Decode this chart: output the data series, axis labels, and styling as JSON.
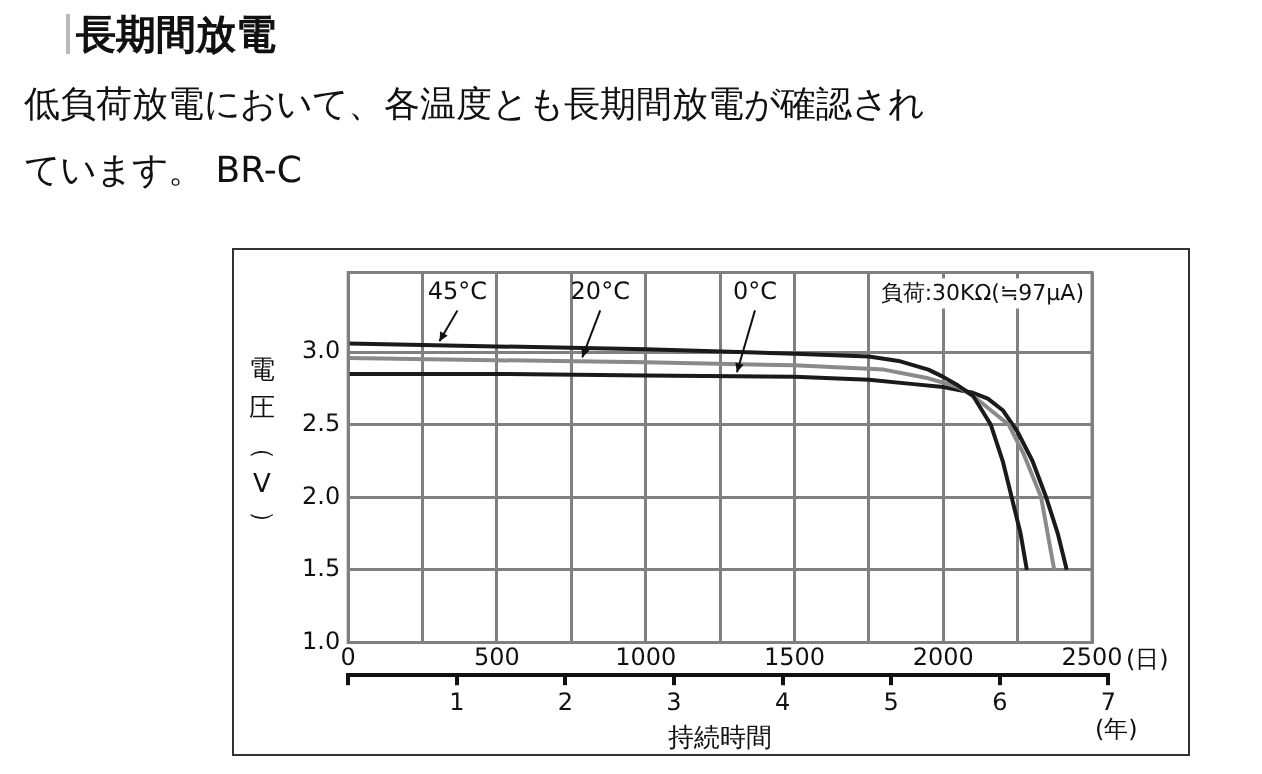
{
  "chart_data": {
    "type": "line",
    "title": "長期間放電",
    "subtitle": "低負荷放電において、各温度とも長期間放電が確認されています。 BR-C",
    "xlabel": "(日)",
    "ylabel": "電圧（V）",
    "x2label": "持続時間",
    "annotations": [
      "負荷:30KΩ(≒97μA)",
      "(年)"
    ],
    "series": [
      {
        "name": "45°C",
        "color": "#1a1a1a",
        "x": [
          0,
          500,
          1000,
          1500,
          1750,
          1850,
          1950,
          2000,
          2050,
          2100,
          2160,
          2200,
          2230,
          2260,
          2281
        ],
        "values": [
          3.06,
          3.04,
          3.02,
          2.99,
          2.97,
          2.94,
          2.88,
          2.83,
          2.77,
          2.7,
          2.5,
          2.25,
          2.0,
          1.75,
          1.5
        ]
      },
      {
        "name": "20°C",
        "color": "#8a8a8a",
        "x": [
          0,
          1000,
          1500,
          1800,
          1950,
          2050,
          2100,
          2220,
          2270,
          2329,
          2373
        ],
        "values": [
          2.96,
          2.93,
          2.91,
          2.88,
          2.82,
          2.76,
          2.7,
          2.5,
          2.3,
          2.0,
          1.5
        ]
      },
      {
        "name": "0°C",
        "color": "#1a1a1a",
        "x": [
          0,
          500,
          1000,
          1500,
          1750,
          1900,
          2000,
          2100,
          2150,
          2200,
          2250,
          2300,
          2346,
          2385,
          2415
        ],
        "values": [
          2.85,
          2.85,
          2.84,
          2.83,
          2.81,
          2.78,
          2.76,
          2.72,
          2.68,
          2.6,
          2.45,
          2.25,
          2.0,
          1.75,
          1.5
        ]
      }
    ],
    "xlim": [
      0,
      2500
    ],
    "xticks": [
      0,
      {
        "value": 250,
        "label": null
      },
      500,
      {
        "value": 750,
        "label": null
      },
      1000,
      {
        "value": 1250,
        "label": null
      },
      1500,
      {
        "value": 1750,
        "label": null
      },
      2000,
      {
        "value": 2250,
        "label": null
      },
      2500
    ],
    "ylim": [
      1.0,
      3.55
    ],
    "yticks": [
      {
        "value": 1,
        "label": "1.0"
      },
      1.5,
      {
        "value": 2,
        "label": "2.0"
      },
      2.5,
      {
        "value": 3,
        "label": "3.0"
      }
    ],
    "x2lim": [
      0,
      7
    ],
    "x2ticks": [
      {
        "value": 0,
        "label": null
      },
      1,
      2,
      3,
      4,
      5,
      6,
      7
    ],
    "grid": true
  }
}
